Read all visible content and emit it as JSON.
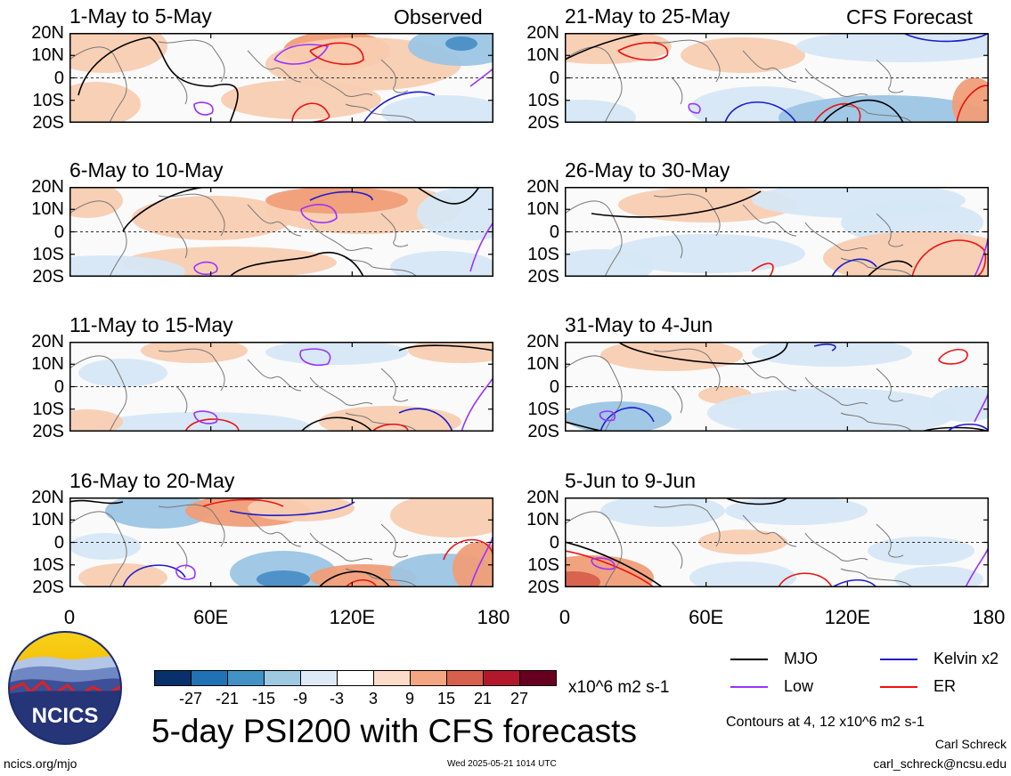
{
  "corner_left": "Observed",
  "corner_right": "CFS Forecast",
  "lat_labels": [
    "20N",
    "10N",
    "0",
    "10S",
    "20S"
  ],
  "lon_labels": [
    "0",
    "60E",
    "120E",
    "180"
  ],
  "panels": [
    {
      "title": "1-May to 5-May"
    },
    {
      "title": "21-May to 25-May"
    },
    {
      "title": "6-May to 10-May"
    },
    {
      "title": "26-May to 30-May"
    },
    {
      "title": "11-May to 15-May"
    },
    {
      "title": "31-May to 4-Jun"
    },
    {
      "title": "16-May to 20-May"
    },
    {
      "title": "5-Jun to 9-Jun"
    }
  ],
  "colorbar": {
    "colors": [
      "#08306b",
      "#2171b5",
      "#4292c6",
      "#9ecae1",
      "#deebf7",
      "#ffffff",
      "#fcdcc8",
      "#f4a582",
      "#d6604d",
      "#b2182b",
      "#67001f"
    ],
    "ticks": [
      "-27",
      "-21",
      "-15",
      "-9",
      "-3",
      "3",
      "9",
      "15",
      "21",
      "27"
    ],
    "units": "x10^6 m2 s-1"
  },
  "legend": {
    "items": [
      {
        "label": "MJO",
        "color": "#000000"
      },
      {
        "label": "Kelvin x2",
        "color": "#1c1ccc"
      },
      {
        "label": "Low",
        "color": "#9933ff"
      },
      {
        "label": "ER",
        "color": "#ee1111"
      }
    ],
    "contours_note": "Contours at 4, 12 x10^6 m2 s-1"
  },
  "main_title": "5-day PSI200 with CFS forecasts",
  "logo_text": "NCICS",
  "footer": {
    "url": "ncics.org/mjo",
    "timestamp": "Wed 2025-05-21 1014 UTC",
    "author": "Carl Schreck",
    "email": "carl_schreck@ncsu.edu"
  }
}
